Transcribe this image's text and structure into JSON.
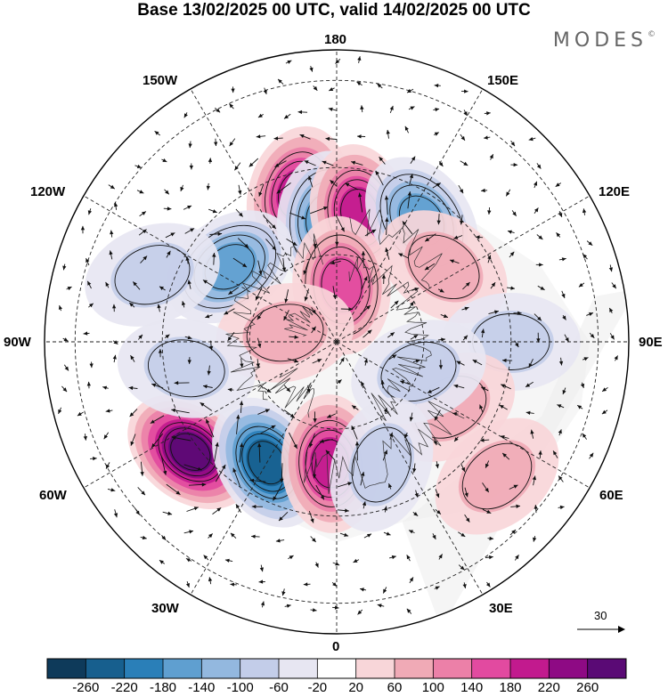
{
  "header": {
    "title": "Base 13/02/2025 00 UTC, valid 14/02/2025 00 UTC",
    "brand": "MODES",
    "brand_mark": "©"
  },
  "map": {
    "projection": "north-polar-stereographic",
    "longitude_labels": {
      "lon_180": "180",
      "lon_150W": "150W",
      "lon_150E": "150E",
      "lon_120W": "120W",
      "lon_120E": "120E",
      "lon_90W": "90W",
      "lon_90E": "90E",
      "lon_60W": "60W",
      "lon_60E": "60E",
      "lon_30W": "30W",
      "lon_30E": "30E",
      "lon_0": "0"
    },
    "reference_vector_label": "30",
    "anomaly_centres": [
      {
        "lon": -165,
        "colat": 35,
        "sign": "positive",
        "peak": 180
      },
      {
        "lon": -175,
        "colat": 28,
        "sign": "negative",
        "peak": -120
      },
      {
        "lon": 170,
        "colat": 30,
        "sign": "positive",
        "peak": 180
      },
      {
        "lon": 145,
        "colat": 34,
        "sign": "negative",
        "peak": -120
      },
      {
        "lon": -125,
        "colat": 30,
        "sign": "negative",
        "peak": -120
      },
      {
        "lon": -53,
        "colat": 42,
        "sign": "positive",
        "peak": 240
      },
      {
        "lon": -30,
        "colat": 32,
        "sign": "negative",
        "peak": -220
      },
      {
        "lon": -3,
        "colat": 28,
        "sign": "positive",
        "peak": 180
      },
      {
        "lon": 175,
        "colat": 13,
        "sign": "positive",
        "peak": 120
      },
      {
        "lon": -100,
        "colat": 12,
        "sign": "positive",
        "peak": 60
      },
      {
        "lon": 125,
        "colat": 30,
        "sign": "positive",
        "peak": 60
      },
      {
        "lon": 90,
        "colat": 40,
        "sign": "negative",
        "peak": -60
      },
      {
        "lon": 60,
        "colat": 30,
        "sign": "positive",
        "peak": 60
      },
      {
        "lon": 50,
        "colat": 48,
        "sign": "positive",
        "peak": 60
      },
      {
        "lon": 70,
        "colat": 20,
        "sign": "negative",
        "peak": -60
      },
      {
        "lon": 20,
        "colat": 30,
        "sign": "negative",
        "peak": -60
      },
      {
        "lon": -80,
        "colat": 35,
        "sign": "negative",
        "peak": -60
      },
      {
        "lon": -110,
        "colat": 45,
        "sign": "negative",
        "peak": -40
      }
    ]
  },
  "colorbar": {
    "ticks": [
      "-260",
      "-220",
      "-180",
      "-140",
      "-100",
      "-60",
      "-20",
      "20",
      "60",
      "100",
      "140",
      "180",
      "220",
      "260"
    ],
    "colors": [
      "#0e3a5a",
      "#175f8e",
      "#2a7fb8",
      "#5f9fd0",
      "#93b8df",
      "#c3cde9",
      "#e7e6f2",
      "#ffffff",
      "#f8d6d9",
      "#f0aab6",
      "#ec80a8",
      "#e24aa0",
      "#c21a8e",
      "#8e0a84",
      "#5a0a75"
    ]
  }
}
